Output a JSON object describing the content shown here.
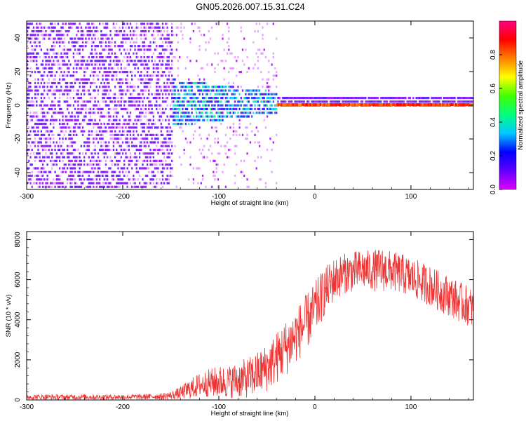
{
  "title": "GN05.2026.007.15.31.C24",
  "chart_data": [
    {
      "type": "heatmap",
      "name": "spectrogram",
      "xlabel": "Height of straight line (km)",
      "ylabel": "Frequency (Hz)",
      "xlim": [
        -300,
        165
      ],
      "ylim": [
        -50,
        50
      ],
      "xticks": [
        -300,
        -200,
        -100,
        0,
        100
      ],
      "yticks": [
        -40,
        -20,
        0,
        20,
        40
      ],
      "grid": false,
      "colorbar": {
        "label": "Normalized spectral amplitude",
        "range": [
          0,
          1
        ],
        "ticks": [
          0.0,
          0.2,
          0.4,
          0.6,
          0.8
        ],
        "colormap": [
          "#e000ff",
          "#6000ff",
          "#0000ff",
          "#00c8ff",
          "#00ff80",
          "#40ff00",
          "#ffff00",
          "#ff8000",
          "#ff0000",
          "#ff0080"
        ]
      },
      "signal_line": {
        "start_km": -40,
        "end_km": 165,
        "frequency_hz": 0,
        "amplitude": 0.9
      }
    },
    {
      "type": "line",
      "name": "snr",
      "xlabel": "Height of straight line (km)",
      "ylabel": "SNR (10 * v/v)",
      "xlim": [
        -300,
        165
      ],
      "ylim": [
        0,
        8400
      ],
      "xticks": [
        -300,
        -200,
        -100,
        0,
        100
      ],
      "yticks": [
        0,
        2000,
        4000,
        6000,
        8000
      ],
      "grid": false,
      "series": [
        {
          "name": "SNR",
          "color": "#ee3333",
          "x": [
            -300,
            -280,
            -260,
            -240,
            -220,
            -200,
            -180,
            -160,
            -150,
            -140,
            -130,
            -120,
            -110,
            -100,
            -90,
            -80,
            -70,
            -60,
            -50,
            -40,
            -30,
            -20,
            -10,
            0,
            10,
            20,
            30,
            40,
            50,
            60,
            70,
            80,
            90,
            100,
            110,
            120,
            130,
            140,
            150,
            160,
            165
          ],
          "y": [
            150,
            150,
            140,
            150,
            140,
            150,
            160,
            180,
            220,
            350,
            550,
            750,
            850,
            900,
            900,
            1000,
            1100,
            1300,
            1600,
            2100,
            2600,
            3200,
            3800,
            4500,
            5400,
            6000,
            6300,
            6400,
            6500,
            6450,
            6500,
            6400,
            6300,
            6100,
            5900,
            5700,
            5400,
            5200,
            4900,
            4700,
            4500
          ],
          "noise_amplitude": [
            130,
            130,
            130,
            130,
            130,
            130,
            130,
            150,
            200,
            300,
            500,
            600,
            700,
            800,
            800,
            900,
            1000,
            1100,
            1200,
            1300,
            1400,
            1400,
            1400,
            1400,
            1200,
            1100,
            1000,
            1000,
            1000,
            1000,
            1100,
            1000,
            1000,
            1000,
            1000,
            1000,
            1000,
            1000,
            1000,
            1000,
            1000
          ]
        }
      ]
    }
  ]
}
